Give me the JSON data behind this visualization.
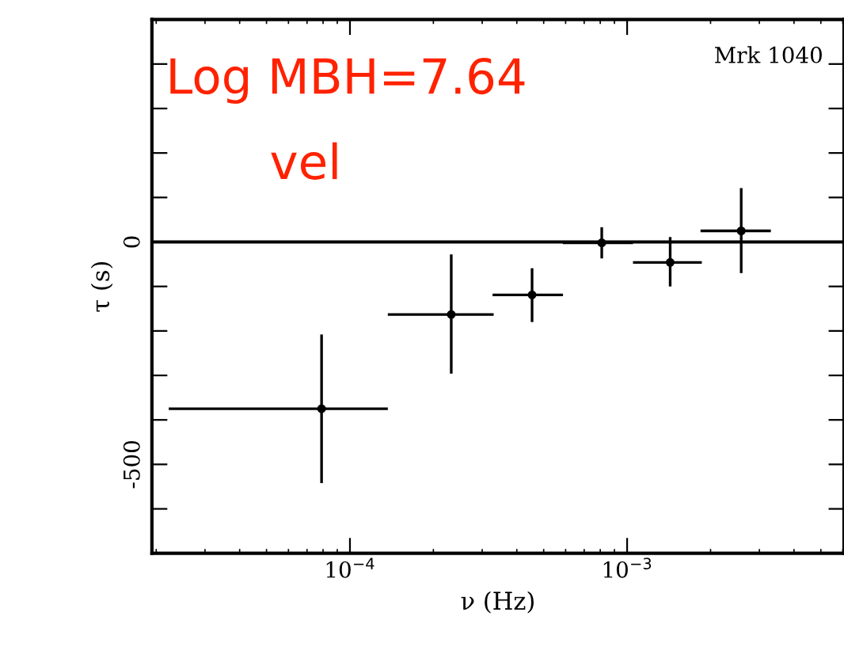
{
  "chart_data": {
    "type": "scatter",
    "xlabel": "ν (Hz)",
    "ylabel": "τ (s)",
    "log": "x",
    "xlim": [
      1.93e-05,
      0.00606
    ],
    "xticks": [
      {
        "value": 0.0001,
        "label": "10$^{−4}$"
      },
      {
        "value": 0.001,
        "label": "10$^{−3}$"
      }
    ],
    "ylim": [
      -700,
      500
    ],
    "yticks": [
      {
        "value": -700,
        "label": null
      },
      {
        "value": -600,
        "label": null
      },
      -500,
      {
        "value": -400,
        "label": null
      },
      {
        "value": -300,
        "label": null
      },
      {
        "value": -200,
        "label": null
      },
      {
        "value": -100,
        "label": null
      },
      0,
      {
        "value": 100,
        "label": null
      },
      {
        "value": 200,
        "label": null
      },
      {
        "value": 300,
        "label": null
      },
      {
        "value": 400,
        "label": null
      },
      {
        "value": 500,
        "label": null
      }
    ],
    "x": [
      7.9e-05,
      0.000232,
      0.000454,
      0.00081,
      0.00143,
      0.00258
    ],
    "series": [
      {
        "color": "#000000",
        "values": [
          -375,
          -163,
          -119,
          -2,
          -46,
          25
        ],
        "errors": [
          [
            -542,
            -208
          ],
          [
            -296,
            -28
          ],
          [
            -180,
            -59
          ],
          [
            -37,
            33
          ],
          [
            -100,
            11
          ],
          [
            -70,
            121
          ]
        ],
        "xerrors": [
          [
            2.22e-05,
            0.000137
          ],
          [
            0.000137,
            0.00033
          ],
          [
            0.000327,
            0.000587
          ],
          [
            0.000586,
            0.00105
          ],
          [
            0.00105,
            0.00186
          ],
          [
            0.00184,
            0.0033
          ]
        ]
      }
    ],
    "marker": "circle",
    "ref_lines": [
      {
        "axis": "y",
        "value": 0,
        "color": "#000000"
      }
    ],
    "annotations": [
      "Log MBH=7.64",
      "vel",
      "Mrk 1040"
    ]
  }
}
